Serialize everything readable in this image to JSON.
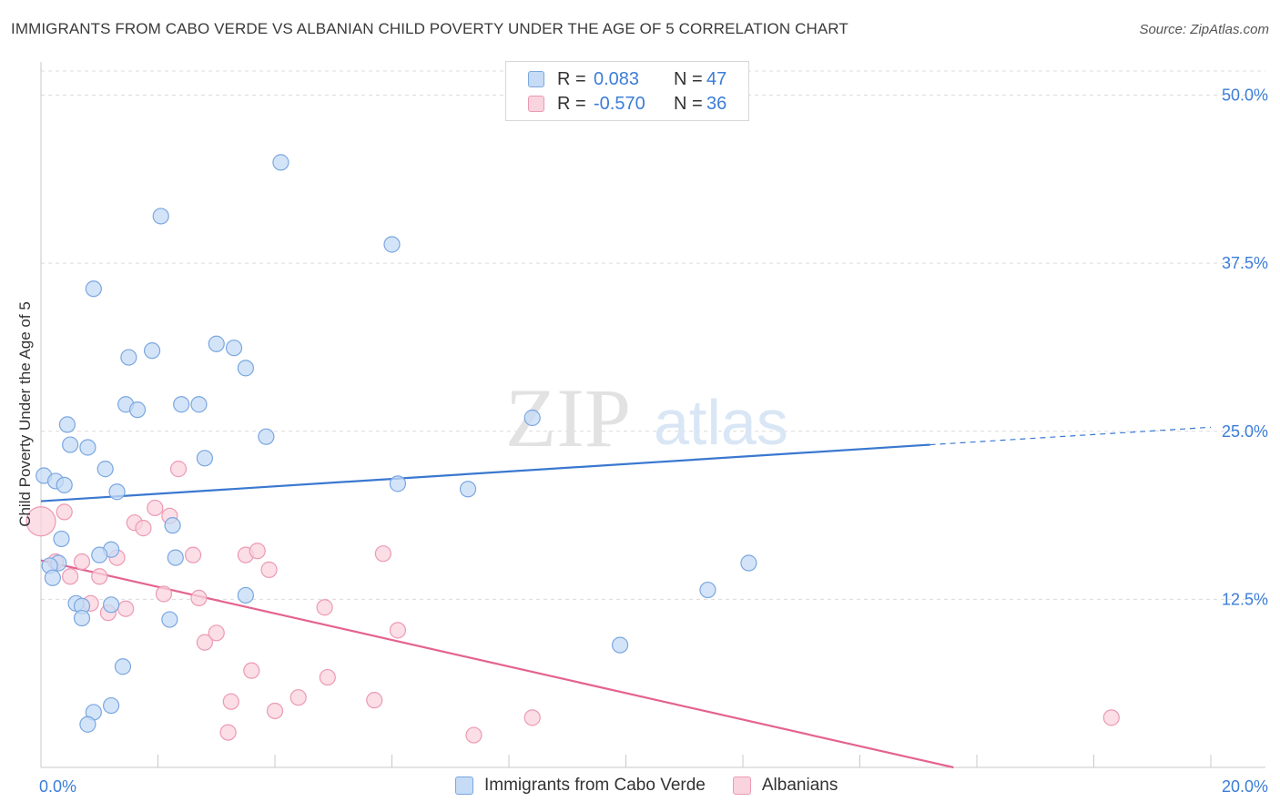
{
  "title": "IMMIGRANTS FROM CABO VERDE VS ALBANIAN CHILD POVERTY UNDER THE AGE OF 5 CORRELATION CHART",
  "source": "Source: ZipAtlas.com",
  "watermark": {
    "zip": "ZIP",
    "atlas": "atlas"
  },
  "legend": {
    "r_label": "R =",
    "n_label": "N =",
    "series": [
      {
        "r": "0.083",
        "n": "47"
      },
      {
        "r": "-0.570",
        "n": "36"
      }
    ]
  },
  "colors": {
    "blue_fill": "#c6dbf5",
    "blue_stroke": "#7aa7e0",
    "blue_line": "#3a78d0",
    "pink_fill": "#f9d3de",
    "pink_stroke": "#ec9ab4",
    "pink_line": "#e4638f",
    "axis_text": "#3b7dd8"
  },
  "chart_data": {
    "type": "scatter",
    "title": "IMMIGRANTS FROM CABO VERDE VS ALBANIAN CHILD POVERTY UNDER THE AGE OF 5 CORRELATION CHART",
    "xlabel": "",
    "ylabel": "Child Poverty Under the Age of 5",
    "xlim": [
      0,
      20
    ],
    "ylim": [
      0,
      52
    ],
    "x_tick_labels": [
      "0.0%",
      "20.0%"
    ],
    "y_ticks": [
      12.5,
      25.0,
      37.5,
      50.0
    ],
    "y_tick_labels": [
      "12.5%",
      "25.0%",
      "37.5%",
      "50.0%"
    ],
    "grid": true,
    "series": [
      {
        "name": "Immigrants from Cabo Verde",
        "r": 0.083,
        "n": 47,
        "trend": {
          "x0": 0,
          "y0": 19.8,
          "x1": 15.2,
          "y1": 24.0,
          "dashed_to_x": 20,
          "dashed_to_y": 25.3
        },
        "points": [
          [
            0.05,
            21.7
          ],
          [
            0.25,
            21.3
          ],
          [
            0.4,
            21.0
          ],
          [
            0.3,
            15.2
          ],
          [
            0.15,
            15.0
          ],
          [
            0.2,
            14.1
          ],
          [
            0.35,
            17.0
          ],
          [
            0.45,
            25.5
          ],
          [
            0.5,
            24.0
          ],
          [
            0.8,
            23.8
          ],
          [
            0.9,
            35.6
          ],
          [
            1.1,
            22.2
          ],
          [
            1.3,
            20.5
          ],
          [
            1.45,
            27.0
          ],
          [
            1.5,
            30.5
          ],
          [
            1.65,
            26.6
          ],
          [
            1.9,
            31.0
          ],
          [
            2.05,
            41.0
          ],
          [
            2.4,
            27.0
          ],
          [
            2.7,
            27.0
          ],
          [
            2.8,
            23.0
          ],
          [
            3.0,
            31.5
          ],
          [
            3.3,
            31.2
          ],
          [
            3.5,
            29.7
          ],
          [
            3.85,
            24.6
          ],
          [
            4.1,
            45.0
          ],
          [
            6.0,
            38.9
          ],
          [
            8.4,
            26.0
          ],
          [
            6.1,
            21.1
          ],
          [
            7.3,
            20.7
          ],
          [
            1.2,
            16.2
          ],
          [
            1.0,
            15.8
          ],
          [
            2.25,
            18.0
          ],
          [
            2.3,
            15.6
          ],
          [
            3.5,
            12.8
          ],
          [
            0.6,
            12.2
          ],
          [
            0.7,
            12.0
          ],
          [
            0.7,
            11.1
          ],
          [
            1.2,
            12.1
          ],
          [
            2.2,
            11.0
          ],
          [
            1.4,
            7.5
          ],
          [
            0.9,
            4.1
          ],
          [
            1.2,
            4.6
          ],
          [
            0.8,
            3.2
          ],
          [
            9.9,
            9.1
          ],
          [
            11.4,
            13.2
          ],
          [
            12.1,
            15.2
          ]
        ]
      },
      {
        "name": "Albanians",
        "r": -0.57,
        "n": 36,
        "trend": {
          "x0": 0,
          "y0": 15.4,
          "x1": 15.6,
          "y1": 0.0
        },
        "points": [
          [
            0.0,
            18.3
          ],
          [
            0.4,
            19.0
          ],
          [
            0.25,
            15.3
          ],
          [
            0.5,
            14.2
          ],
          [
            0.7,
            15.3
          ],
          [
            0.85,
            12.2
          ],
          [
            1.0,
            14.2
          ],
          [
            1.15,
            11.5
          ],
          [
            1.3,
            15.6
          ],
          [
            1.45,
            11.8
          ],
          [
            1.6,
            18.2
          ],
          [
            1.75,
            17.8
          ],
          [
            1.95,
            19.3
          ],
          [
            2.1,
            12.9
          ],
          [
            2.2,
            18.7
          ],
          [
            2.35,
            22.2
          ],
          [
            2.6,
            15.8
          ],
          [
            2.7,
            12.6
          ],
          [
            2.8,
            9.3
          ],
          [
            3.0,
            10.0
          ],
          [
            3.25,
            4.9
          ],
          [
            3.2,
            2.6
          ],
          [
            3.5,
            15.8
          ],
          [
            3.7,
            16.1
          ],
          [
            3.6,
            7.2
          ],
          [
            3.9,
            14.7
          ],
          [
            4.0,
            4.2
          ],
          [
            4.4,
            5.2
          ],
          [
            4.85,
            11.9
          ],
          [
            4.9,
            6.7
          ],
          [
            5.7,
            5.0
          ],
          [
            5.85,
            15.9
          ],
          [
            6.1,
            10.2
          ],
          [
            7.4,
            2.4
          ],
          [
            8.4,
            3.7
          ],
          [
            18.3,
            3.7
          ]
        ]
      }
    ]
  }
}
